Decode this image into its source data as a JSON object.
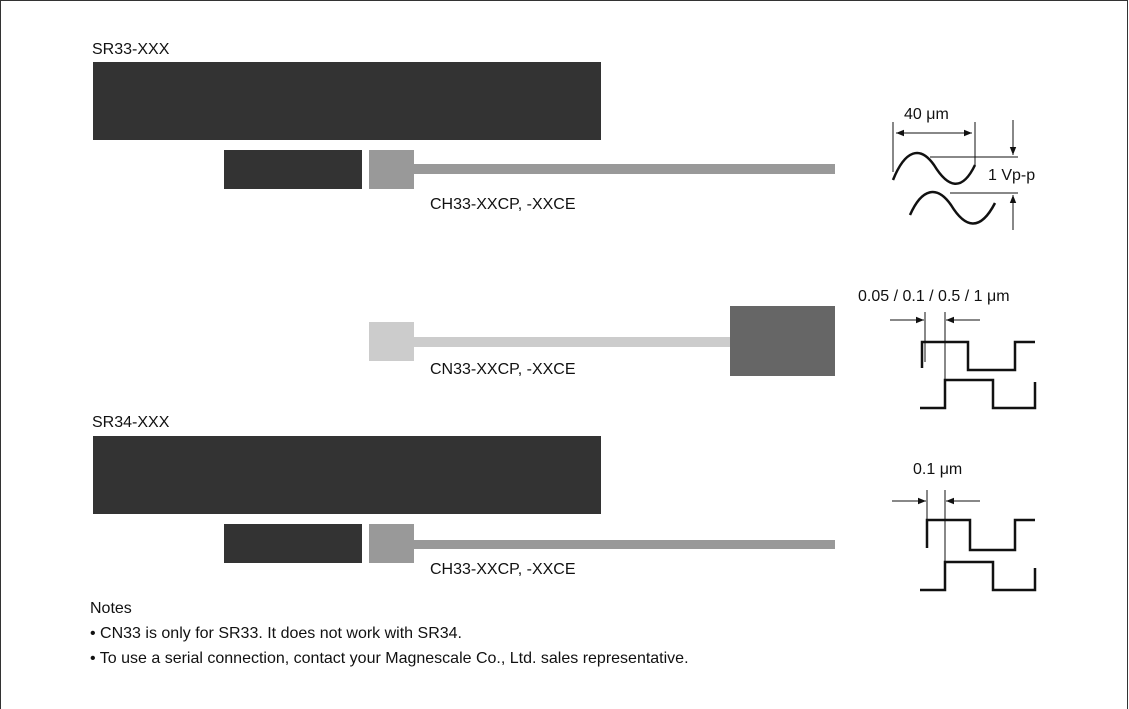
{
  "labels": {
    "sr33": "SR33-XXX",
    "ch33_top": "CH33-XXCP, -XXCE",
    "period": "40 μm",
    "amplitude": "1 Vp-p",
    "resolutions": "0.05 / 0.1 / 0.5 / 1 μm",
    "cn33": "CN33-XXCP, -XXCE",
    "sr34": "SR34-XXX",
    "resolution_sr34": "0.1 μm",
    "ch33_bottom": "CH33-XXCP, -XXCE"
  },
  "notes": {
    "title": "Notes",
    "items": [
      "• CN33 is only for SR33. It does not work with SR34.",
      "• To use a serial connection, contact your Magnescale Co., Ltd. sales representative."
    ]
  }
}
